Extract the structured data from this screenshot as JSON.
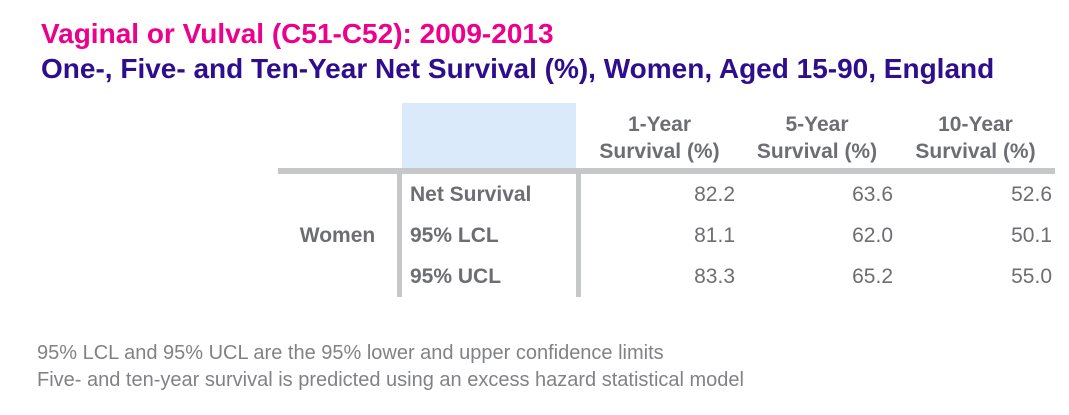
{
  "header": {
    "title": "Vaginal or Vulval (C51-C52): 2009-2013",
    "subtitle": "One-, Five- and Ten-Year Net Survival (%), Women, Aged 15-90, England"
  },
  "table": {
    "row_group_label": "Women",
    "column_headers": [
      {
        "line1": "1-Year",
        "line2": "Survival (%)"
      },
      {
        "line1": "5-Year",
        "line2": "Survival (%)"
      },
      {
        "line1": "10-Year",
        "line2": "Survival (%)"
      }
    ],
    "rows": [
      {
        "label": "Net Survival",
        "values": [
          "82.2",
          "63.6",
          "52.6"
        ]
      },
      {
        "label": "95% LCL",
        "values": [
          "81.1",
          "62.0",
          "50.1"
        ]
      },
      {
        "label": "95% UCL",
        "values": [
          "83.3",
          "65.2",
          "55.0"
        ]
      }
    ]
  },
  "footnotes": {
    "line1": "95% LCL and 95% UCL are the 95% lower and upper confidence limits",
    "line2": "Five- and ten-year survival is predicted using an excess hazard statistical model"
  },
  "colors": {
    "title_pink": "#EC008C",
    "subtitle_purple": "#2E0E8C",
    "table_text_gray": "#6D6E71",
    "footnote_gray": "#808285",
    "rule_gray": "#C6C7C9",
    "corner_cell_blue": "#DBEAFB"
  },
  "chart_data": {
    "type": "table",
    "title": "Vaginal or Vulval (C51-C52): 2009-2013",
    "subtitle": "One-, Five- and Ten-Year Net Survival (%), Women, Aged 15-90, England",
    "group": "Women",
    "columns": [
      "1-Year Survival (%)",
      "5-Year Survival (%)",
      "10-Year Survival (%)"
    ],
    "series": [
      {
        "name": "Net Survival",
        "values": [
          82.2,
          63.6,
          52.6
        ]
      },
      {
        "name": "95% LCL",
        "values": [
          81.1,
          62.0,
          50.1
        ]
      },
      {
        "name": "95% UCL",
        "values": [
          83.3,
          65.2,
          55.0
        ]
      }
    ],
    "footnotes": [
      "95% LCL and 95% UCL are the 95% lower and upper confidence limits",
      "Five- and ten-year survival is predicted using an excess hazard statistical model"
    ]
  }
}
